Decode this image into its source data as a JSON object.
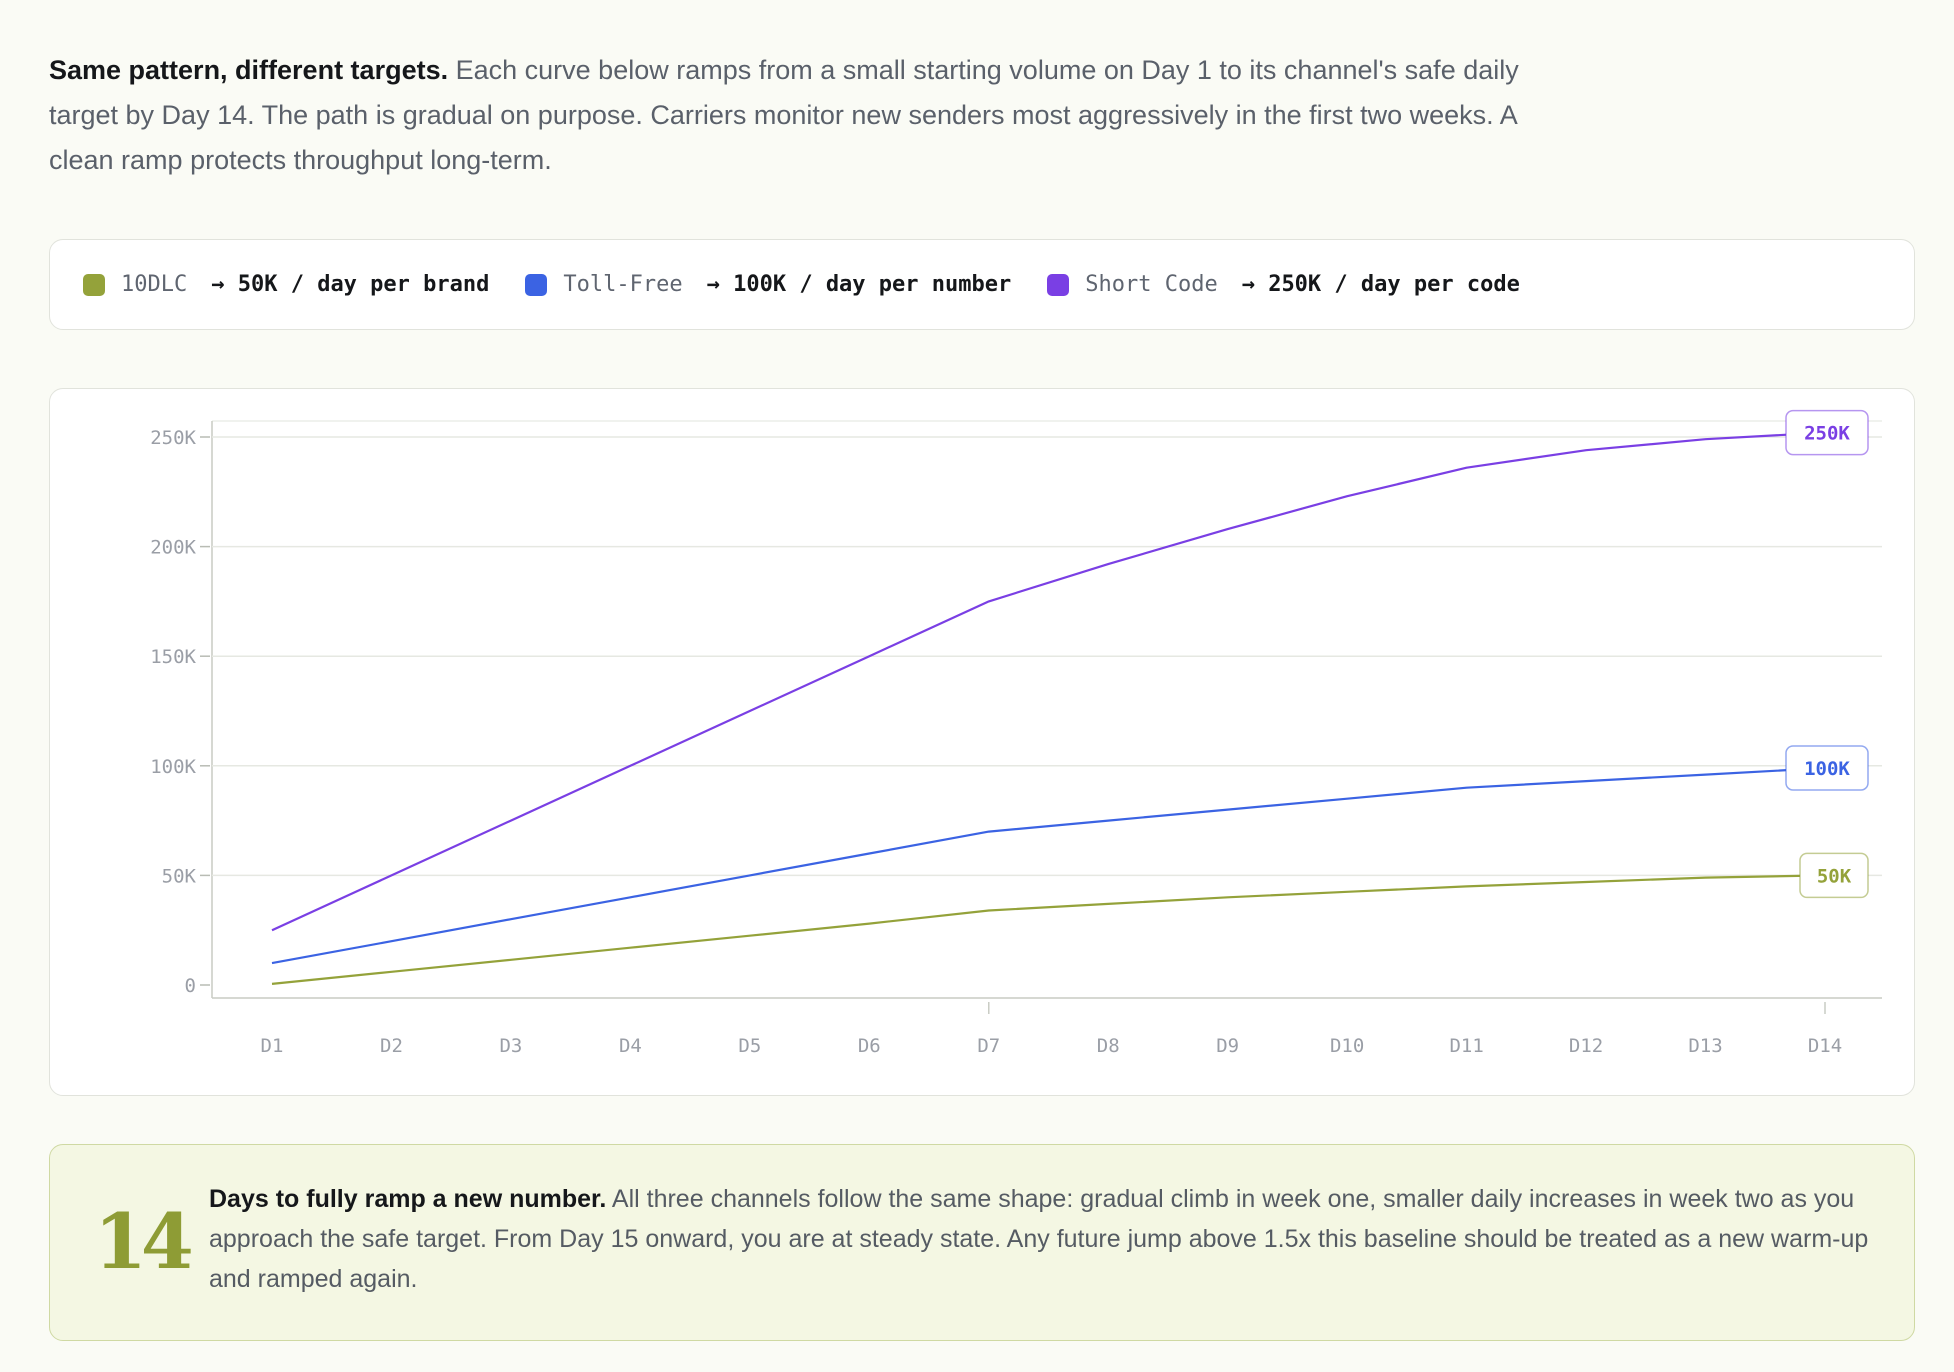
{
  "intro": {
    "lead": "Same pattern, different targets.",
    "body": "Each curve below ramps from a small starting volume on Day 1 to its channel's safe daily target by Day 14. The path is gradual on purpose. Carriers monitor new senders most aggressively in the first two weeks. A clean ramp protects throughput long-term."
  },
  "legend": [
    {
      "name": "10DLC",
      "target": "→ 50K / day per brand",
      "color": "#94a23a"
    },
    {
      "name": "Toll-Free",
      "target": "→ 100K / day per number",
      "color": "#3b63e3"
    },
    {
      "name": "Short Code",
      "target": "→ 250K / day per code",
      "color": "#7a3fe4"
    }
  ],
  "chart_data": {
    "type": "line",
    "x": [
      "D1",
      "D2",
      "D3",
      "D4",
      "D5",
      "D6",
      "D7",
      "D8",
      "D9",
      "D10",
      "D11",
      "D12",
      "D13",
      "D14"
    ],
    "yticks": [
      "0",
      "50K",
      "100K",
      "150K",
      "200K",
      "250K"
    ],
    "ylim": [
      0,
      250000
    ],
    "grid": true,
    "series": [
      {
        "name": "10DLC",
        "color": "#94a23a",
        "end_label": "50K",
        "values": [
          500,
          6000,
          11500,
          17000,
          22500,
          28000,
          34000,
          37000,
          40000,
          42500,
          45000,
          47000,
          49000,
          50000
        ]
      },
      {
        "name": "Toll-Free",
        "color": "#3b63e3",
        "end_label": "100K",
        "values": [
          10000,
          20000,
          30000,
          40000,
          50000,
          60000,
          70000,
          75000,
          80000,
          85000,
          90000,
          93000,
          96000,
          99000
        ]
      },
      {
        "name": "Short Code",
        "color": "#7a3fe4",
        "end_label": "250K",
        "values": [
          25000,
          50000,
          75000,
          100000,
          125000,
          150000,
          175000,
          192000,
          208000,
          223000,
          236000,
          244000,
          249000,
          252000
        ]
      }
    ]
  },
  "callout": {
    "number": "14",
    "lead": "Days to fully ramp a new number.",
    "body": "All three channels follow the same shape: gradual climb in week one, smaller daily increases in week two as you approach the safe target. From Day 15 onward, you are at steady state. Any future jump above 1.5x this baseline should be treated as a new warm-up and ramped again."
  }
}
